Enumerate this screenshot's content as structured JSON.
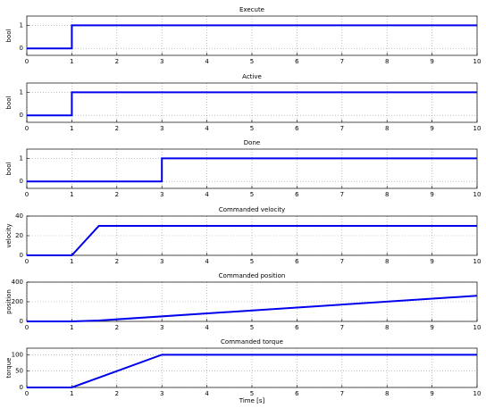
{
  "chart_data": [
    {
      "type": "line",
      "title": "Execute",
      "ylabel": "bool",
      "x": [
        0,
        1,
        1,
        10
      ],
      "values": [
        0,
        0,
        1,
        1
      ],
      "color": "#0000ee",
      "xlim": [
        0,
        10
      ],
      "xticks": [
        0,
        1,
        2,
        3,
        4,
        5,
        6,
        7,
        8,
        9,
        10
      ],
      "ylim": [
        -0.3,
        1.4
      ],
      "yticks": [
        0,
        1
      ],
      "grid": true
    },
    {
      "type": "line",
      "title": "Active",
      "ylabel": "bool",
      "x": [
        0,
        1,
        1,
        10
      ],
      "values": [
        0,
        0,
        1,
        1
      ],
      "color": "#0000ee",
      "xlim": [
        0,
        10
      ],
      "xticks": [
        0,
        1,
        2,
        3,
        4,
        5,
        6,
        7,
        8,
        9,
        10
      ],
      "ylim": [
        -0.3,
        1.4
      ],
      "yticks": [
        0,
        1
      ],
      "grid": true
    },
    {
      "type": "line",
      "title": "Done",
      "ylabel": "bool",
      "x": [
        0,
        3,
        3,
        10
      ],
      "values": [
        0,
        0,
        1,
        1
      ],
      "color": "#0000ee",
      "xlim": [
        0,
        10
      ],
      "xticks": [
        0,
        1,
        2,
        3,
        4,
        5,
        6,
        7,
        8,
        9,
        10
      ],
      "ylim": [
        -0.3,
        1.4
      ],
      "yticks": [
        0,
        1
      ],
      "grid": true
    },
    {
      "type": "line",
      "title": "Commanded velocity",
      "ylabel": "velocity",
      "x": [
        0,
        1,
        1.6,
        10
      ],
      "values": [
        0,
        0,
        30,
        30
      ],
      "color": "#0000ee",
      "xlim": [
        0,
        10
      ],
      "xticks": [
        0,
        1,
        2,
        3,
        4,
        5,
        6,
        7,
        8,
        9,
        10
      ],
      "ylim": [
        0,
        40
      ],
      "yticks": [
        0,
        20,
        40
      ],
      "grid": true
    },
    {
      "type": "line",
      "title": "Commanded position",
      "ylabel": "position",
      "x": [
        0,
        1,
        1.6,
        10
      ],
      "values": [
        0,
        0,
        9,
        261
      ],
      "color": "#0000ee",
      "xlim": [
        0,
        10
      ],
      "xticks": [
        0,
        1,
        2,
        3,
        4,
        5,
        6,
        7,
        8,
        9,
        10
      ],
      "ylim": [
        0,
        400
      ],
      "yticks": [
        0,
        200,
        400
      ],
      "grid": true
    },
    {
      "type": "line",
      "title": "Commanded torque",
      "ylabel": "torque",
      "xlabel": "Time [s]",
      "x": [
        0,
        1,
        3,
        10
      ],
      "values": [
        0,
        0,
        100,
        100
      ],
      "color": "#0000ee",
      "xlim": [
        0,
        10
      ],
      "xticks": [
        0,
        1,
        2,
        3,
        4,
        5,
        6,
        7,
        8,
        9,
        10
      ],
      "ylim": [
        0,
        120
      ],
      "yticks": [
        0,
        50,
        100
      ],
      "grid": true
    }
  ]
}
